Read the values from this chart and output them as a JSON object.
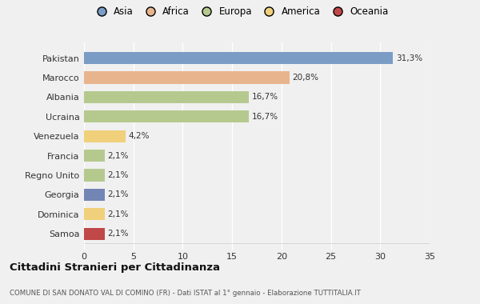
{
  "countries": [
    "Pakistan",
    "Marocco",
    "Albania",
    "Ucraina",
    "Venezuela",
    "Francia",
    "Regno Unito",
    "Georgia",
    "Dominica",
    "Samoa"
  ],
  "values": [
    31.3,
    20.8,
    16.7,
    16.7,
    4.2,
    2.1,
    2.1,
    2.1,
    2.1,
    2.1
  ],
  "labels": [
    "31,3%",
    "20,8%",
    "16,7%",
    "16,7%",
    "4,2%",
    "2,1%",
    "2,1%",
    "2,1%",
    "2,1%",
    "2,1%"
  ],
  "colors": [
    "#7a9cc5",
    "#e8b48e",
    "#b5c98e",
    "#b5c98e",
    "#f0d07a",
    "#b5c98e",
    "#b5c98e",
    "#7285b5",
    "#f0d07a",
    "#c04848"
  ],
  "legend_labels": [
    "Asia",
    "Africa",
    "Europa",
    "America",
    "Oceania"
  ],
  "legend_colors": [
    "#7a9cc5",
    "#e8b48e",
    "#b5c98e",
    "#f0d07a",
    "#c04848"
  ],
  "xlim": [
    0,
    35
  ],
  "xticks": [
    0,
    5,
    10,
    15,
    20,
    25,
    30,
    35
  ],
  "title": "Cittadini Stranieri per Cittadinanza",
  "subtitle": "COMUNE DI SAN DONATO VAL DI COMINO (FR) - Dati ISTAT al 1° gennaio - Elaborazione TUTTITALIA.IT",
  "background_color": "#f0f0f0",
  "grid_color": "#ffffff",
  "label_color": "#444444",
  "text_color": "#333333"
}
